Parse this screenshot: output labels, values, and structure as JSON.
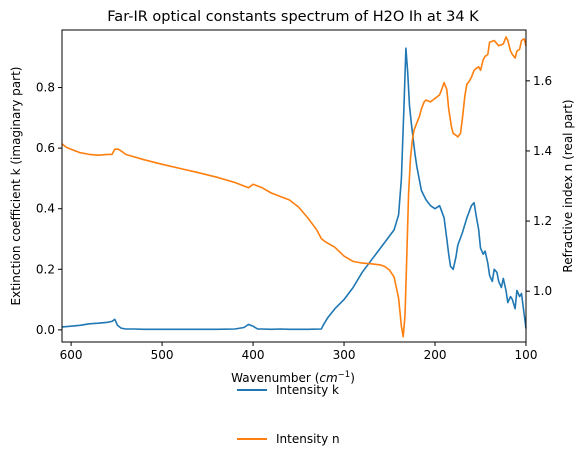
{
  "chart_data": {
    "type": "line",
    "title": "Far-IR optical constants spectrum of H2O Ih at 34 K",
    "xlabel": "Wavenumber",
    "xlabel_unit_base": "cm",
    "xlabel_unit_exp": "−1",
    "ylabel_left": "Extinction coefficient k (imaginary part)",
    "ylabel_right": "Refractive index n (real part)",
    "xlim": [
      610,
      100
    ],
    "ylim_left": [
      -0.04,
      0.99
    ],
    "ylim_right": [
      0.855,
      1.745
    ],
    "x_ticks": [
      "600",
      "500",
      "400",
      "300",
      "200",
      "100"
    ],
    "x_tick_values": [
      600,
      500,
      400,
      300,
      200,
      100
    ],
    "y_left_ticks": [
      "0.0",
      "0.2",
      "0.4",
      "0.6",
      "0.8"
    ],
    "y_left_tick_values": [
      0.0,
      0.2,
      0.4,
      0.6,
      0.8
    ],
    "y_right_ticks": [
      "1.0",
      "1.2",
      "1.4",
      "1.6"
    ],
    "y_right_tick_values": [
      1.0,
      1.2,
      1.4,
      1.6
    ],
    "grid": false,
    "legend_position": "below chart",
    "series": [
      {
        "name": "Intensity k",
        "axis": "left",
        "color": "#1f77b4",
        "x": [
          610,
          600,
          590,
          580,
          570,
          560,
          555,
          552,
          549,
          545,
          540,
          530,
          520,
          500,
          480,
          460,
          440,
          420,
          410,
          405,
          400,
          395,
          390,
          380,
          370,
          360,
          340,
          325,
          322,
          318,
          310,
          300,
          290,
          280,
          270,
          260,
          250,
          245,
          240,
          237,
          234,
          232,
          230,
          228,
          226,
          224,
          222,
          220,
          215,
          210,
          205,
          200,
          195,
          190,
          187,
          185,
          183,
          180,
          177,
          175,
          170,
          165,
          160,
          157,
          155,
          152,
          150,
          147,
          145,
          142,
          140,
          137,
          135,
          132,
          130,
          127,
          125,
          122,
          120,
          117,
          115,
          112,
          110,
          107,
          105,
          102,
          100
        ],
        "y": [
          0.01,
          0.012,
          0.015,
          0.02,
          0.022,
          0.025,
          0.028,
          0.035,
          0.015,
          0.006,
          0.003,
          0.003,
          0.002,
          0.002,
          0.002,
          0.002,
          0.002,
          0.003,
          0.008,
          0.018,
          0.012,
          0.003,
          0.003,
          0.002,
          0.003,
          0.002,
          0.002,
          0.003,
          0.02,
          0.04,
          0.07,
          0.1,
          0.14,
          0.19,
          0.23,
          0.27,
          0.31,
          0.33,
          0.38,
          0.5,
          0.75,
          0.93,
          0.85,
          0.74,
          0.68,
          0.63,
          0.58,
          0.54,
          0.46,
          0.43,
          0.41,
          0.4,
          0.41,
          0.37,
          0.3,
          0.25,
          0.21,
          0.2,
          0.24,
          0.28,
          0.32,
          0.37,
          0.41,
          0.42,
          0.38,
          0.33,
          0.27,
          0.25,
          0.26,
          0.22,
          0.18,
          0.16,
          0.2,
          0.19,
          0.16,
          0.14,
          0.17,
          0.13,
          0.09,
          0.11,
          0.1,
          0.07,
          0.13,
          0.11,
          0.12,
          0.05,
          0.005
        ]
      },
      {
        "name": "Intensity n",
        "axis": "right",
        "color": "#ff7f0e",
        "x": [
          610,
          605,
          600,
          590,
          580,
          570,
          560,
          555,
          552,
          548,
          545,
          540,
          520,
          500,
          480,
          460,
          440,
          420,
          410,
          405,
          400,
          395,
          390,
          380,
          370,
          360,
          350,
          340,
          330,
          325,
          320,
          310,
          300,
          290,
          280,
          270,
          260,
          255,
          250,
          245,
          240,
          237,
          235,
          233,
          231,
          229,
          227,
          225,
          223,
          220,
          217,
          215,
          212,
          210,
          205,
          200,
          195,
          192,
          190,
          187,
          185,
          182,
          180,
          177,
          175,
          172,
          170,
          167,
          165,
          162,
          160,
          157,
          155,
          152,
          150,
          147,
          145,
          142,
          140,
          135,
          130,
          125,
          122,
          120,
          117,
          115,
          112,
          110,
          107,
          105,
          102,
          100
        ],
        "y": [
          1.42,
          1.41,
          1.405,
          1.395,
          1.39,
          1.388,
          1.39,
          1.39,
          1.405,
          1.405,
          1.4,
          1.39,
          1.375,
          1.362,
          1.35,
          1.338,
          1.325,
          1.31,
          1.3,
          1.295,
          1.305,
          1.3,
          1.295,
          1.28,
          1.27,
          1.26,
          1.24,
          1.21,
          1.175,
          1.15,
          1.14,
          1.125,
          1.1,
          1.085,
          1.08,
          1.078,
          1.075,
          1.07,
          1.06,
          1.04,
          0.98,
          0.9,
          0.87,
          0.93,
          1.1,
          1.28,
          1.38,
          1.43,
          1.46,
          1.48,
          1.5,
          1.52,
          1.54,
          1.545,
          1.54,
          1.55,
          1.56,
          1.58,
          1.595,
          1.575,
          1.52,
          1.47,
          1.45,
          1.445,
          1.44,
          1.45,
          1.49,
          1.56,
          1.59,
          1.6,
          1.61,
          1.63,
          1.635,
          1.64,
          1.63,
          1.66,
          1.67,
          1.675,
          1.71,
          1.715,
          1.7,
          1.705,
          1.725,
          1.715,
          1.685,
          1.675,
          1.665,
          1.685,
          1.69,
          1.715,
          1.72,
          1.7
        ]
      }
    ]
  }
}
